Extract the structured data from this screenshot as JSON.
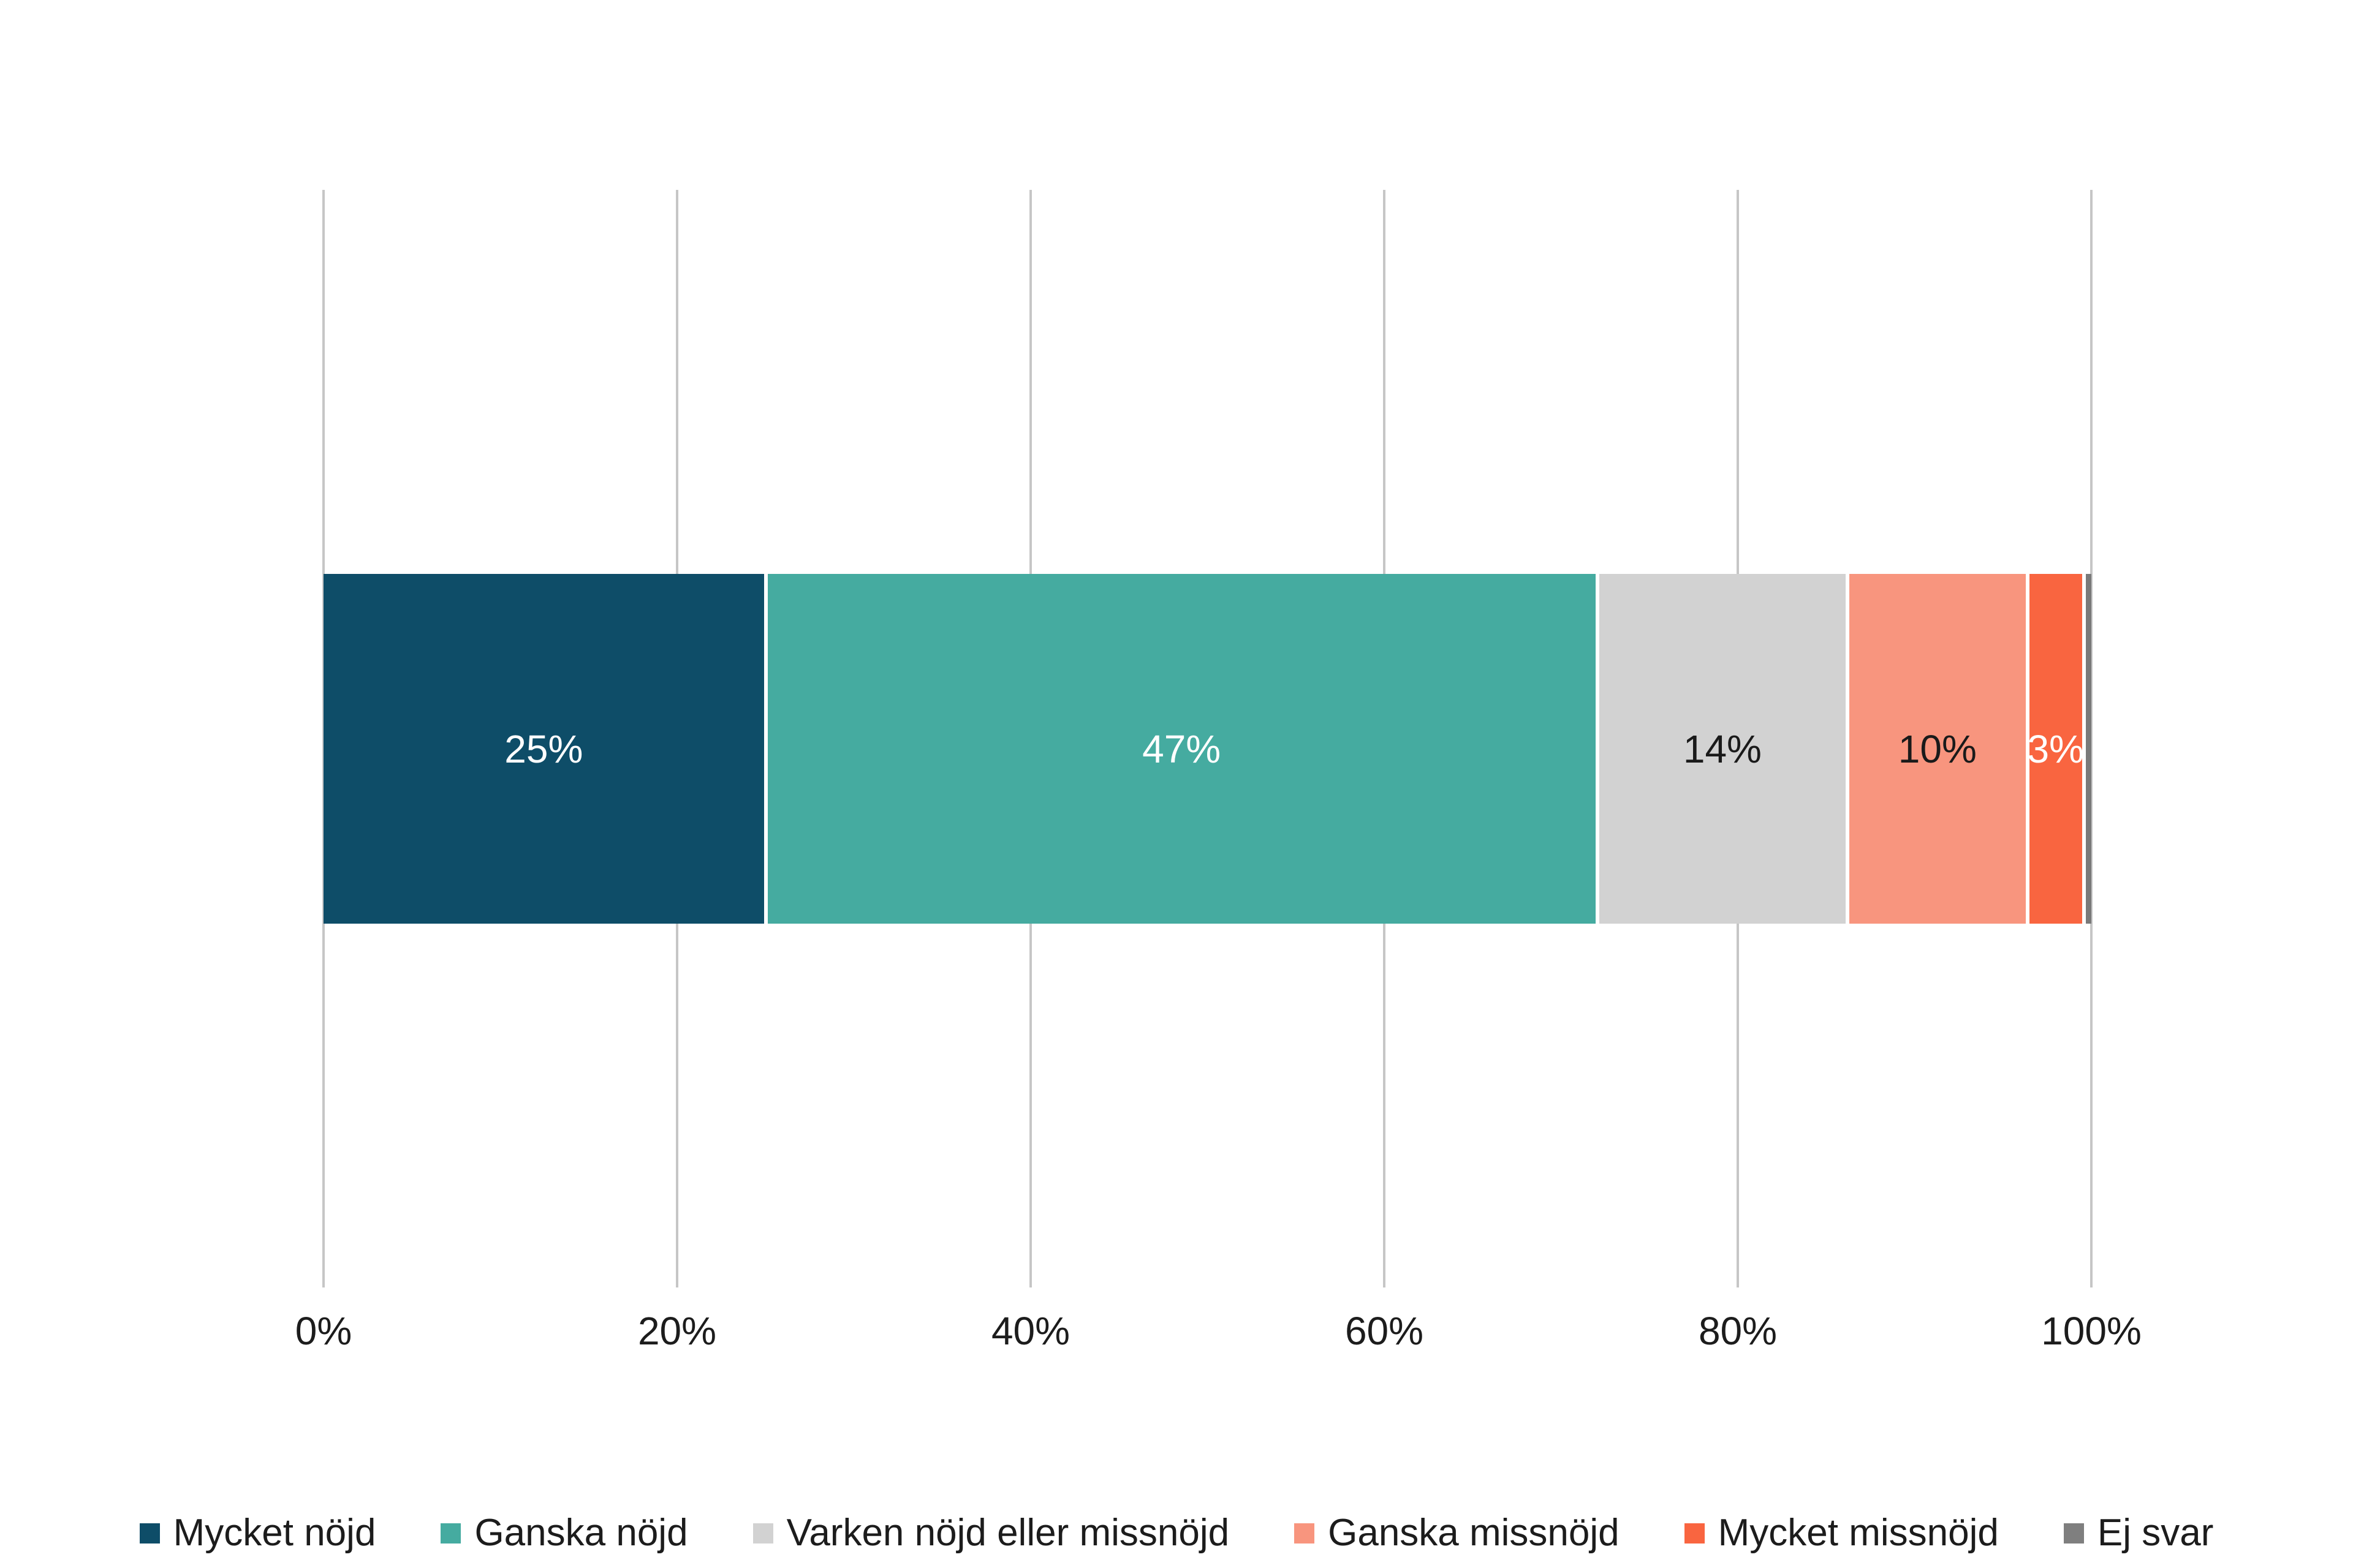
{
  "chart_data": {
    "type": "bar",
    "variant": "horizontal-stacked",
    "title": "",
    "xlabel": "",
    "ylabel": "",
    "axis_range": [
      0,
      100
    ],
    "grid": true,
    "gridline_color": "#c6c6c6",
    "axis_text_color": "#1c1c1c",
    "x_ticks": [
      {
        "label": "0%",
        "value": 0
      },
      {
        "label": "20%",
        "value": 20
      },
      {
        "label": "40%",
        "value": 40
      },
      {
        "label": "60%",
        "value": 60
      },
      {
        "label": "80%",
        "value": 80
      },
      {
        "label": "100%",
        "value": 100
      }
    ],
    "series": [
      {
        "name": "Mycket nöjd",
        "value": 25,
        "label": "25%",
        "color": "#0e4d68",
        "label_color": "#ffffff"
      },
      {
        "name": "Ganska nöjd",
        "value": 47,
        "label": "47%",
        "color": "#45aba0",
        "label_color": "#ffffff"
      },
      {
        "name": "Varken nöjd eller missnöjd",
        "value": 14,
        "label": "14%",
        "color": "#d2d2d2",
        "label_color": "#1a1a1a"
      },
      {
        "name": "Ganska missnöjd",
        "value": 10,
        "label": "10%",
        "color": "#f8957e",
        "label_color": "#1a1a1a"
      },
      {
        "name": "Mycket missnöjd",
        "value": 3,
        "label": "3%",
        "color": "#f96540",
        "label_color": "#ffffff"
      },
      {
        "name": "Ej svar",
        "value": 0,
        "label": "",
        "color": "#7a7a7a",
        "label_color": "#ffffff",
        "display_width_pct": 0.32
      }
    ],
    "legend": {
      "position": "bottom",
      "entries": [
        {
          "label": "Mycket nöjd",
          "color": "#0e4d68"
        },
        {
          "label": "Ganska nöjd",
          "color": "#45aba0"
        },
        {
          "label": "Varken nöjd eller missnöjd",
          "color": "#d2d2d2"
        },
        {
          "label": "Ganska missnöjd",
          "color": "#f8957e"
        },
        {
          "label": "Mycket missnöjd",
          "color": "#f96540"
        },
        {
          "label": "Ej svar",
          "color": "#7f7f7f"
        }
      ]
    }
  }
}
